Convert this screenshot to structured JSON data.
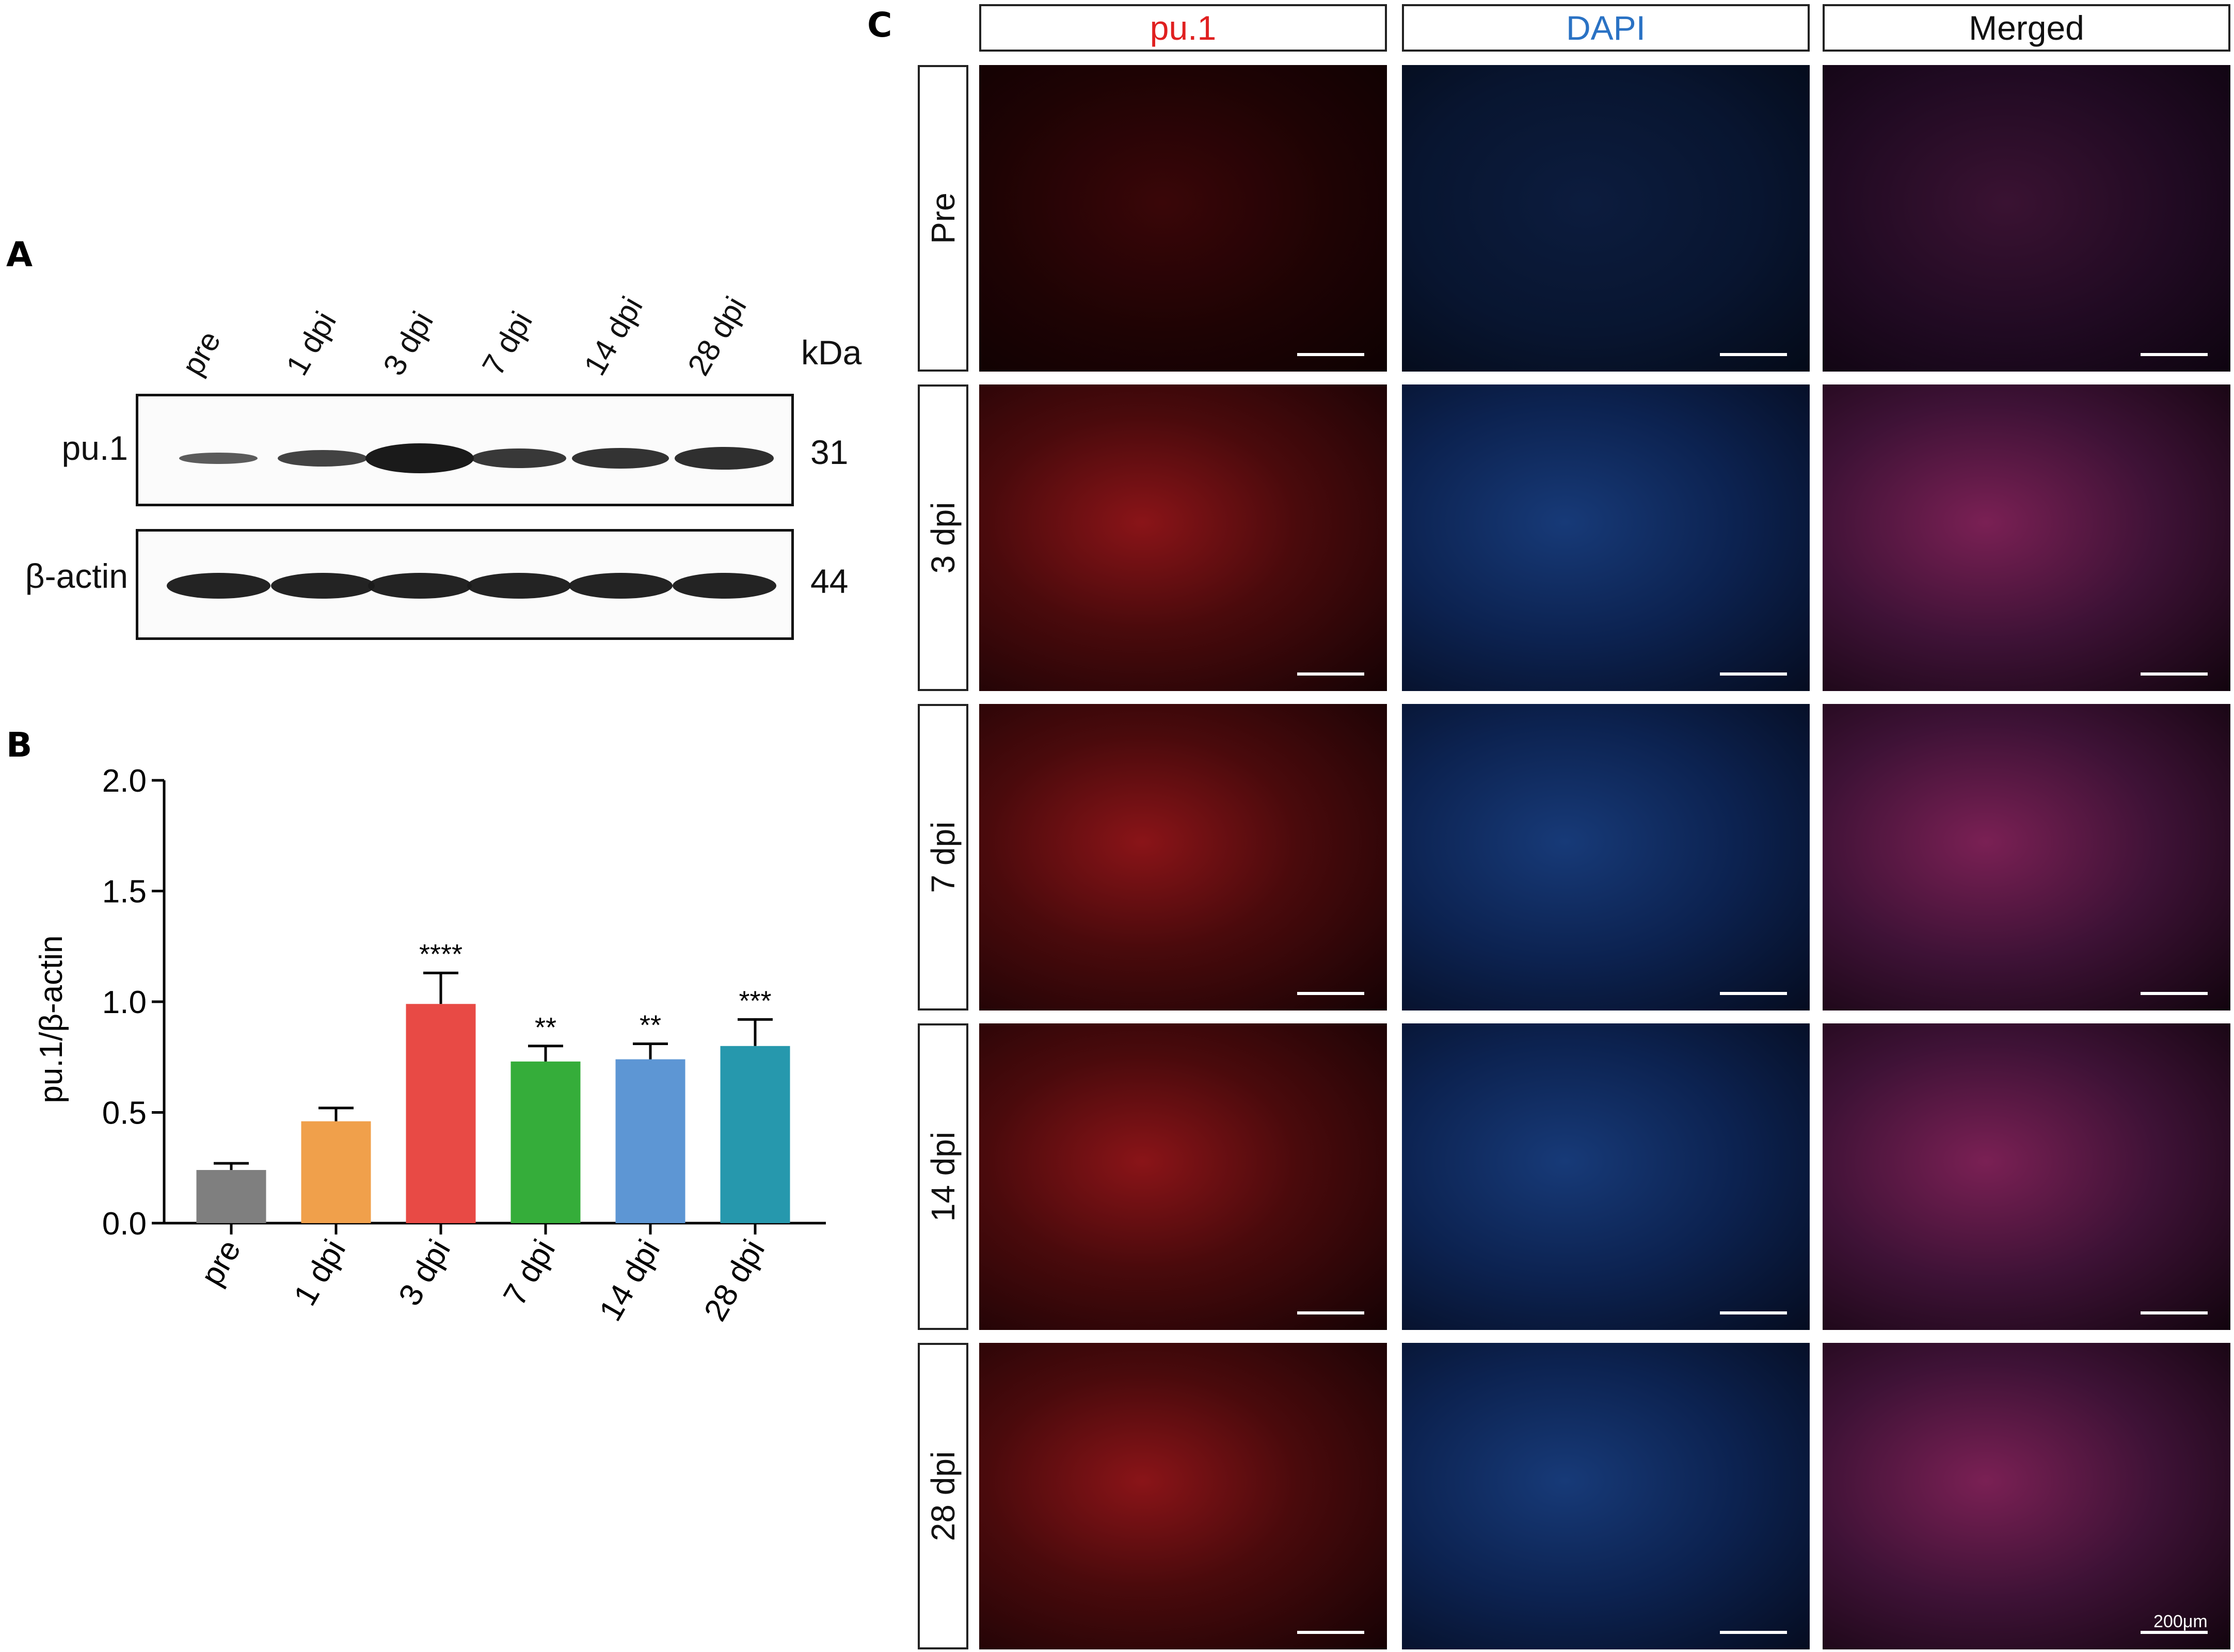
{
  "panels": {
    "a": "A",
    "b": "B",
    "c": "C"
  },
  "blot": {
    "lanes": [
      "pre",
      "1 dpi",
      "3 dpi",
      "7 dpi",
      "14 dpi",
      "28 dpi"
    ],
    "kda_label": "kDa",
    "rows": [
      {
        "protein": "pu.1",
        "kda": "31",
        "band_intensity": [
          0.35,
          0.6,
          1.0,
          0.72,
          0.75,
          0.8
        ]
      },
      {
        "protein": "β-actin",
        "kda": "44",
        "band_intensity": [
          0.9,
          0.9,
          0.9,
          0.9,
          0.9,
          0.9
        ]
      }
    ]
  },
  "chart_data": {
    "type": "bar",
    "categories": [
      "pre",
      "1 dpi",
      "3 dpi",
      "7 dpi",
      "14 dpi",
      "28 dpi"
    ],
    "values": [
      0.24,
      0.46,
      0.99,
      0.73,
      0.74,
      0.8
    ],
    "errors": [
      0.03,
      0.06,
      0.14,
      0.07,
      0.07,
      0.12
    ],
    "significance": [
      "",
      "",
      "****",
      "**",
      "**",
      "***"
    ],
    "colors": [
      "#7f7f7f",
      "#f0a04b",
      "#e84a45",
      "#35ad3a",
      "#5d96d4",
      "#2698ad"
    ],
    "ylabel": "pu.1/β-actin",
    "xlabel": "",
    "ylim": [
      0,
      2.0
    ],
    "yticks": [
      "0.0",
      "0.5",
      "1.0",
      "1.5",
      "2.0"
    ]
  },
  "microscopy": {
    "columns": [
      {
        "label": "pu.1",
        "color": "#e02020"
      },
      {
        "label": "DAPI",
        "color": "#2a72c4"
      },
      {
        "label": "Merged",
        "color": "#111111"
      }
    ],
    "rows": [
      "Pre",
      "3 dpi",
      "7 dpi",
      "14 dpi",
      "28 dpi"
    ],
    "scale_label": "200μm"
  }
}
